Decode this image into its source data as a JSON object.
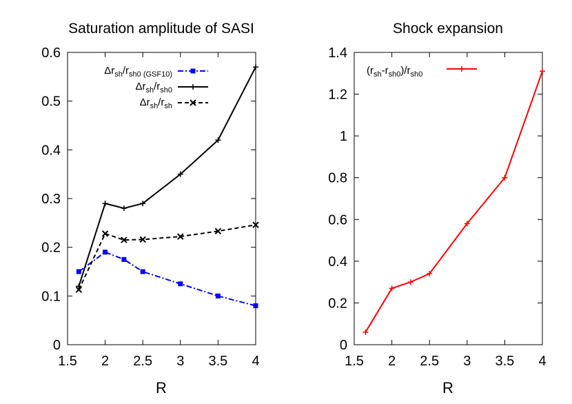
{
  "chart_data": [
    {
      "type": "line",
      "title": "Saturation amplitude of SASI",
      "xlabel": "R",
      "ylabel": "",
      "xlim": [
        1.5,
        4
      ],
      "ylim": [
        0,
        0.6
      ],
      "xticks": [
        "1.5",
        "2",
        "2.5",
        "3",
        "3.5",
        "4"
      ],
      "yticks": [
        "0",
        "0.1",
        "0.2",
        "0.3",
        "0.4",
        "0.5",
        "0.6"
      ],
      "grid": false,
      "legend_position": "top-right",
      "series": [
        {
          "name": "Δr_sh/r_sh0 (GSF10)",
          "legend_main": "Δr",
          "legend_subs": [
            "sh",
            "/r",
            "sh0 (GSF10)"
          ],
          "color": "#0000ff",
          "dash": "dash-dot",
          "marker": "square",
          "x": [
            1.65,
            2.0,
            2.25,
            2.5,
            3.0,
            3.5,
            4.0
          ],
          "y": [
            0.15,
            0.19,
            0.175,
            0.15,
            0.125,
            0.1,
            0.08
          ]
        },
        {
          "name": "Δr_sh/r_sh0",
          "legend_main": "Δr",
          "legend_subs": [
            "sh",
            "/r",
            "sh0"
          ],
          "color": "#000000",
          "dash": "solid",
          "marker": "plus",
          "x": [
            1.65,
            2.0,
            2.25,
            2.5,
            3.0,
            3.5,
            4.0
          ],
          "y": [
            0.12,
            0.29,
            0.28,
            0.29,
            0.35,
            0.42,
            0.57
          ]
        },
        {
          "name": "Δr_sh/r_sh",
          "legend_main": "Δr",
          "legend_subs": [
            "sh",
            "/r",
            "sh"
          ],
          "color": "#000000",
          "dash": "dashed",
          "marker": "cross",
          "x": [
            1.65,
            2.0,
            2.25,
            2.5,
            3.0,
            3.5,
            4.0
          ],
          "y": [
            0.113,
            0.228,
            0.215,
            0.216,
            0.222,
            0.233,
            0.246
          ]
        }
      ]
    },
    {
      "type": "line",
      "title": "Shock expansion",
      "xlabel": "R",
      "ylabel": "",
      "xlim": [
        1.5,
        4
      ],
      "ylim": [
        0,
        1.4
      ],
      "xticks": [
        "1.5",
        "2",
        "2.5",
        "3",
        "3.5",
        "4"
      ],
      "yticks": [
        "0",
        "0.2",
        "0.4",
        "0.6",
        "0.8",
        "1",
        "1.2",
        "1.4"
      ],
      "grid": false,
      "legend_position": "top-left",
      "series": [
        {
          "name": "(r_sh-r_sh0)/r_sh0",
          "color": "#ff0000",
          "dash": "solid",
          "marker": "plus",
          "x": [
            1.65,
            2.0,
            2.25,
            2.5,
            3.0,
            3.5,
            4.0
          ],
          "y": [
            0.06,
            0.27,
            0.3,
            0.34,
            0.58,
            0.8,
            1.31
          ]
        }
      ]
    }
  ],
  "legend_text": {
    "left": [
      {
        "main": "Δr",
        "s1": "sh",
        "mid": "/r",
        "s2": "sh0 (GSF10)"
      },
      {
        "main": "Δr",
        "s1": "sh",
        "mid": "/r",
        "s2": "sh0"
      },
      {
        "main": "Δr",
        "s1": "sh",
        "mid": "/r",
        "s2": "sh"
      }
    ],
    "right": {
      "p1": "(r",
      "s1": "sh",
      "p2": "-r",
      "s2": "sh0",
      "p3": ")/r",
      "s3": "sh0"
    }
  }
}
